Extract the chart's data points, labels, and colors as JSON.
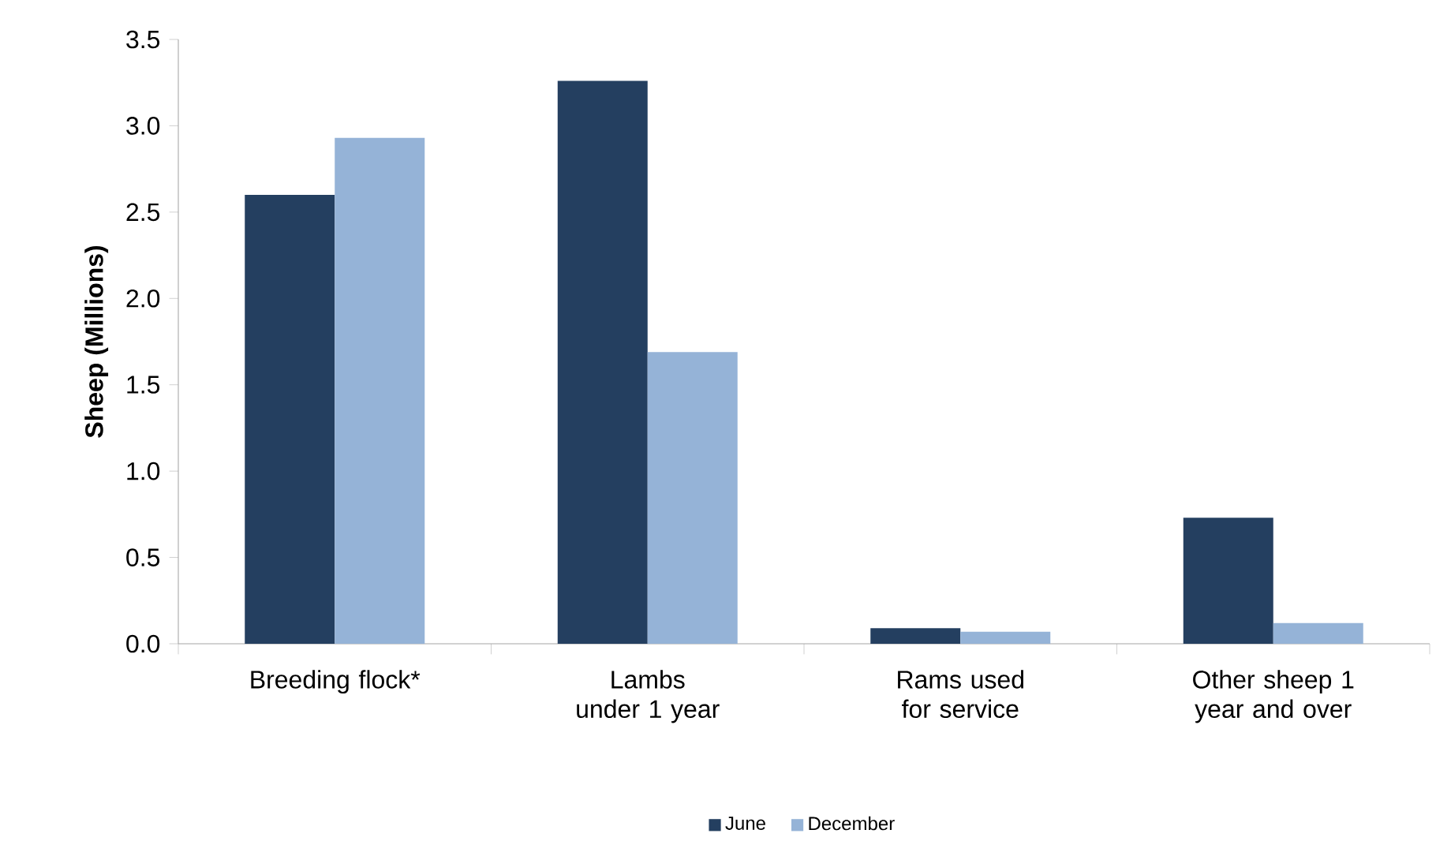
{
  "chart_data": {
    "type": "bar",
    "ylabel": "Sheep (Millions)",
    "categories": [
      "Breeding flock*",
      "Lambs under 1 year",
      "Rams used for service",
      "Other sheep 1 year and over"
    ],
    "series": [
      {
        "name": "June",
        "color": "#243f60",
        "values": [
          2.6,
          3.26,
          0.09,
          0.73
        ]
      },
      {
        "name": "December",
        "color": "#95b3d7",
        "values": [
          2.93,
          1.69,
          0.07,
          0.12
        ]
      }
    ],
    "ylim": [
      0,
      3.5
    ],
    "yticks": [
      {
        "value": 0,
        "label": "0.0"
      },
      {
        "value": 0.5,
        "label": "0.5"
      },
      {
        "value": 1,
        "label": "1.0"
      },
      {
        "value": 1.5,
        "label": "1.5"
      },
      {
        "value": 2,
        "label": "2.0"
      },
      {
        "value": 2.5,
        "label": "2.5"
      },
      {
        "value": 3,
        "label": "3.0"
      },
      {
        "value": 3.5,
        "label": "3.5"
      }
    ],
    "grid": false,
    "legend": "bottom"
  }
}
